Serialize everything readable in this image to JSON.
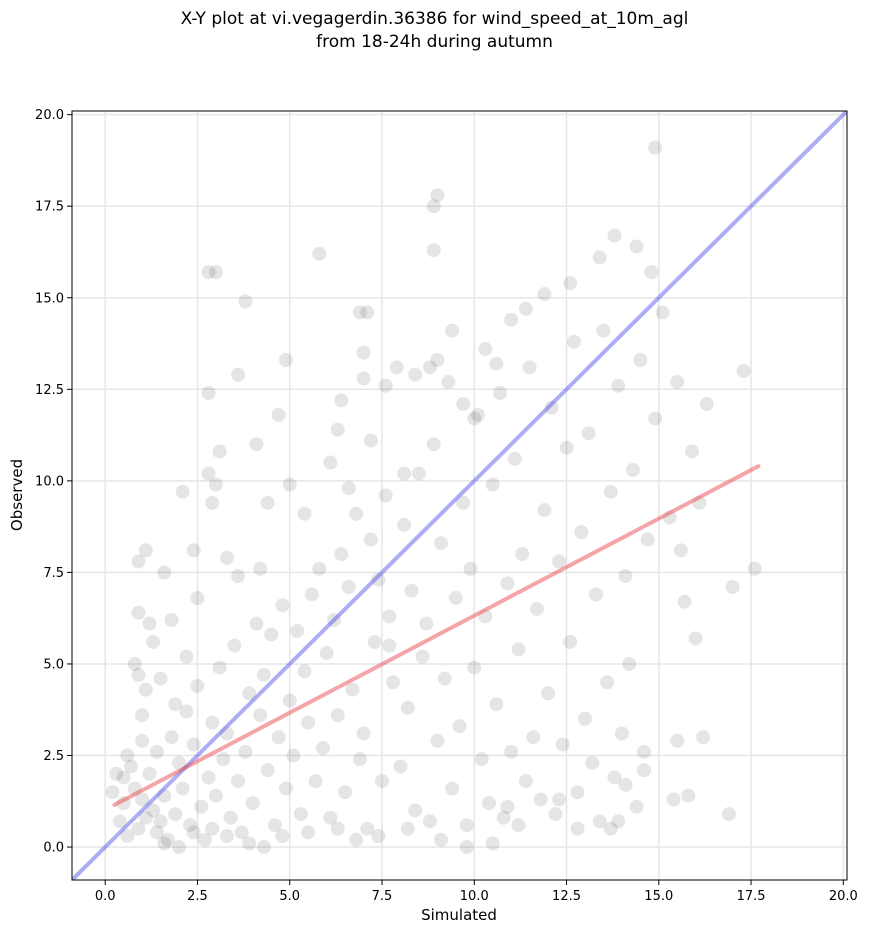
{
  "title": {
    "line1": "X-Y plot at vi.vegagerdin.36386 for wind_speed_at_10m_agl",
    "line2": "from 18-24h during autumn"
  },
  "chart_data": {
    "type": "scatter",
    "xlabel": "Simulated",
    "ylabel": "Observed",
    "xlim": [
      -0.9,
      20.1
    ],
    "ylim": [
      -0.9,
      20.1
    ],
    "x_ticks": [
      0.0,
      2.5,
      5.0,
      7.5,
      10.0,
      12.5,
      15.0,
      17.5,
      20.0
    ],
    "y_ticks": [
      0.0,
      2.5,
      5.0,
      7.5,
      10.0,
      12.5,
      15.0,
      17.5,
      20.0
    ],
    "x_tick_labels": [
      "0.0",
      "2.5",
      "5.0",
      "7.5",
      "10.0",
      "12.5",
      "15.0",
      "17.5",
      "20.0"
    ],
    "y_tick_labels": [
      "0.0",
      "2.5",
      "5.0",
      "7.5",
      "10.0",
      "12.5",
      "15.0",
      "17.5",
      "20.0"
    ],
    "grid": true,
    "point_color": "#000000",
    "points": [
      [
        0.9,
        0.5
      ],
      [
        1.1,
        0.8
      ],
      [
        1.3,
        1.0
      ],
      [
        1.0,
        1.3
      ],
      [
        1.5,
        0.7
      ],
      [
        0.8,
        1.6
      ],
      [
        1.2,
        2.0
      ],
      [
        1.6,
        1.4
      ],
      [
        1.9,
        0.9
      ],
      [
        2.1,
        1.6
      ],
      [
        2.3,
        0.6
      ],
      [
        2.0,
        2.3
      ],
      [
        2.6,
        1.1
      ],
      [
        2.8,
        1.9
      ],
      [
        1.4,
        2.6
      ],
      [
        0.7,
        2.2
      ],
      [
        1.8,
        3.0
      ],
      [
        2.4,
        2.8
      ],
      [
        3.0,
        1.4
      ],
      [
        3.2,
        2.4
      ],
      [
        2.9,
        3.4
      ],
      [
        3.4,
        0.8
      ],
      [
        3.6,
        1.8
      ],
      [
        3.3,
        3.1
      ],
      [
        3.8,
        2.6
      ],
      [
        4.0,
        1.2
      ],
      [
        4.2,
        3.6
      ],
      [
        3.9,
        4.2
      ],
      [
        4.4,
        2.1
      ],
      [
        4.6,
        0.6
      ],
      [
        4.7,
        3.0
      ],
      [
        4.9,
        1.6
      ],
      [
        5.1,
        2.5
      ],
      [
        5.0,
        4.0
      ],
      [
        5.3,
        0.9
      ],
      [
        5.5,
        3.4
      ],
      [
        5.7,
        1.8
      ],
      [
        5.4,
        4.8
      ],
      [
        5.9,
        2.7
      ],
      [
        6.1,
        0.8
      ],
      [
        6.3,
        3.6
      ],
      [
        6.0,
        5.3
      ],
      [
        6.5,
        1.5
      ],
      [
        6.7,
        4.3
      ],
      [
        6.9,
        2.4
      ],
      [
        7.1,
        0.5
      ],
      [
        7.3,
        5.6
      ],
      [
        7.0,
        3.1
      ],
      [
        7.5,
        1.8
      ],
      [
        7.7,
        6.3
      ],
      [
        0.5,
        1.9
      ],
      [
        0.6,
        0.3
      ],
      [
        1.0,
        2.9
      ],
      [
        1.7,
        0.2
      ],
      [
        2.2,
        3.7
      ],
      [
        2.5,
        4.4
      ],
      [
        2.7,
        0.2
      ],
      [
        3.1,
        4.9
      ],
      [
        3.5,
        5.5
      ],
      [
        3.7,
        0.4
      ],
      [
        4.1,
        6.1
      ],
      [
        4.3,
        4.7
      ],
      [
        4.5,
        5.8
      ],
      [
        4.8,
        6.6
      ],
      [
        5.2,
        5.9
      ],
      [
        5.6,
        6.9
      ],
      [
        5.8,
        7.6
      ],
      [
        6.2,
        6.2
      ],
      [
        6.4,
        8.0
      ],
      [
        6.6,
        7.1
      ],
      [
        6.8,
        9.1
      ],
      [
        7.2,
        8.4
      ],
      [
        7.4,
        7.3
      ],
      [
        7.6,
        9.6
      ],
      [
        7.8,
        4.5
      ],
      [
        8.0,
        2.2
      ],
      [
        8.2,
        3.8
      ],
      [
        8.4,
        1.0
      ],
      [
        8.6,
        5.2
      ],
      [
        8.8,
        0.7
      ],
      [
        9.0,
        2.9
      ],
      [
        9.2,
        4.6
      ],
      [
        9.4,
        1.6
      ],
      [
        9.6,
        3.3
      ],
      [
        9.8,
        0.6
      ],
      [
        10.0,
        4.9
      ],
      [
        10.2,
        2.4
      ],
      [
        10.4,
        1.2
      ],
      [
        10.6,
        3.9
      ],
      [
        10.8,
        0.8
      ],
      [
        11.0,
        2.6
      ],
      [
        11.2,
        5.4
      ],
      [
        11.4,
        1.8
      ],
      [
        11.6,
        3.0
      ],
      [
        11.8,
        1.3
      ],
      [
        12.0,
        4.2
      ],
      [
        12.2,
        0.9
      ],
      [
        12.4,
        2.8
      ],
      [
        12.6,
        5.6
      ],
      [
        12.8,
        1.5
      ],
      [
        13.0,
        3.5
      ],
      [
        13.2,
        2.3
      ],
      [
        13.4,
        0.7
      ],
      [
        13.6,
        4.5
      ],
      [
        13.8,
        1.9
      ],
      [
        14.0,
        3.1
      ],
      [
        14.2,
        5.0
      ],
      [
        14.4,
        1.1
      ],
      [
        14.6,
        2.6
      ],
      [
        15.4,
        1.3
      ],
      [
        8.1,
        8.8
      ],
      [
        8.3,
        7.0
      ],
      [
        8.5,
        10.2
      ],
      [
        8.7,
        6.1
      ],
      [
        8.9,
        11.0
      ],
      [
        9.1,
        8.3
      ],
      [
        9.3,
        12.7
      ],
      [
        9.5,
        6.8
      ],
      [
        9.7,
        9.4
      ],
      [
        9.9,
        7.6
      ],
      [
        10.1,
        11.8
      ],
      [
        10.3,
        6.3
      ],
      [
        10.5,
        9.9
      ],
      [
        10.7,
        12.4
      ],
      [
        10.9,
        7.2
      ],
      [
        11.1,
        10.6
      ],
      [
        11.3,
        8.0
      ],
      [
        11.5,
        13.1
      ],
      [
        11.7,
        6.5
      ],
      [
        11.9,
        9.2
      ],
      [
        12.1,
        12.0
      ],
      [
        12.3,
        7.8
      ],
      [
        12.5,
        10.9
      ],
      [
        12.7,
        13.8
      ],
      [
        12.9,
        8.6
      ],
      [
        13.1,
        11.3
      ],
      [
        13.3,
        6.9
      ],
      [
        13.5,
        14.1
      ],
      [
        13.7,
        9.7
      ],
      [
        13.9,
        12.6
      ],
      [
        14.1,
        7.4
      ],
      [
        14.3,
        10.3
      ],
      [
        14.5,
        13.3
      ],
      [
        14.7,
        8.4
      ],
      [
        14.9,
        11.7
      ],
      [
        15.1,
        14.6
      ],
      [
        15.3,
        9.0
      ],
      [
        15.5,
        12.7
      ],
      [
        15.7,
        6.7
      ],
      [
        15.9,
        10.8
      ],
      [
        16.1,
        9.4
      ],
      [
        16.3,
        12.1
      ],
      [
        16.0,
        5.7
      ],
      [
        15.6,
        8.1
      ],
      [
        14.8,
        15.7
      ],
      [
        14.4,
        16.4
      ],
      [
        13.8,
        16.7
      ],
      [
        13.4,
        16.1
      ],
      [
        12.6,
        15.4
      ],
      [
        11.9,
        15.1
      ],
      [
        3.0,
        15.7
      ],
      [
        2.8,
        15.7
      ],
      [
        3.8,
        14.9
      ],
      [
        5.8,
        16.2
      ],
      [
        8.9,
        17.5
      ],
      [
        9.0,
        17.8
      ],
      [
        8.9,
        16.3
      ],
      [
        14.9,
        19.1
      ],
      [
        17.6,
        7.6
      ],
      [
        17.3,
        13.0
      ],
      [
        17.0,
        7.1
      ],
      [
        16.9,
        0.9
      ],
      [
        15.8,
        1.4
      ],
      [
        16.2,
        3.0
      ],
      [
        15.5,
        2.9
      ],
      [
        7.7,
        5.5
      ],
      [
        6.9,
        14.6
      ],
      [
        7.1,
        14.6
      ],
      [
        7.0,
        13.5
      ],
      [
        4.9,
        13.3
      ],
      [
        2.8,
        12.4
      ],
      [
        3.6,
        12.9
      ],
      [
        4.1,
        11.0
      ],
      [
        4.7,
        11.8
      ],
      [
        3.1,
        10.8
      ],
      [
        2.8,
        10.2
      ],
      [
        3.0,
        9.9
      ],
      [
        2.1,
        9.7
      ],
      [
        2.9,
        9.4
      ],
      [
        2.4,
        8.1
      ],
      [
        1.1,
        8.1
      ],
      [
        0.9,
        7.8
      ],
      [
        1.6,
        7.5
      ],
      [
        0.9,
        6.4
      ],
      [
        1.2,
        6.1
      ],
      [
        0.8,
        5.0
      ],
      [
        0.9,
        4.7
      ],
      [
        1.1,
        4.3
      ],
      [
        1.5,
        4.6
      ],
      [
        1.3,
        5.6
      ],
      [
        1.0,
        3.6
      ],
      [
        1.9,
        3.9
      ],
      [
        2.2,
        5.2
      ],
      [
        2.5,
        6.8
      ],
      [
        1.8,
        6.2
      ],
      [
        3.3,
        7.9
      ],
      [
        3.6,
        7.4
      ],
      [
        4.2,
        7.6
      ],
      [
        4.4,
        9.4
      ],
      [
        5.0,
        9.9
      ],
      [
        5.4,
        9.1
      ],
      [
        6.1,
        10.5
      ],
      [
        6.3,
        11.4
      ],
      [
        6.4,
        12.2
      ],
      [
        6.6,
        9.8
      ],
      [
        7.0,
        12.8
      ],
      [
        7.2,
        11.1
      ],
      [
        7.6,
        12.6
      ],
      [
        7.9,
        13.1
      ],
      [
        8.1,
        10.2
      ],
      [
        8.4,
        12.9
      ],
      [
        8.8,
        13.1
      ],
      [
        9.0,
        13.3
      ],
      [
        9.4,
        14.1
      ],
      [
        9.7,
        12.1
      ],
      [
        10.0,
        11.7
      ],
      [
        10.3,
        13.6
      ],
      [
        10.6,
        13.2
      ],
      [
        11.0,
        14.4
      ],
      [
        11.4,
        14.7
      ],
      [
        0.4,
        0.7
      ],
      [
        0.5,
        1.2
      ],
      [
        0.3,
        2.0
      ],
      [
        0.6,
        2.5
      ],
      [
        0.2,
        1.5
      ],
      [
        1.4,
        0.4
      ],
      [
        1.6,
        0.1
      ],
      [
        2.0,
        0.0
      ],
      [
        2.4,
        0.4
      ],
      [
        2.9,
        0.5
      ],
      [
        3.3,
        0.3
      ],
      [
        3.9,
        0.1
      ],
      [
        4.3,
        0.0
      ],
      [
        4.8,
        0.3
      ],
      [
        5.5,
        0.4
      ],
      [
        6.3,
        0.5
      ],
      [
        6.8,
        0.2
      ],
      [
        7.4,
        0.3
      ],
      [
        8.2,
        0.5
      ],
      [
        9.1,
        0.2
      ],
      [
        9.8,
        0.0
      ],
      [
        10.5,
        0.1
      ],
      [
        11.2,
        0.6
      ],
      [
        12.8,
        0.5
      ],
      [
        13.7,
        0.5
      ],
      [
        13.9,
        0.7
      ],
      [
        14.6,
        2.1
      ],
      [
        14.1,
        1.7
      ],
      [
        12.3,
        1.3
      ],
      [
        10.9,
        1.1
      ]
    ],
    "regression_line": {
      "color": "#e8383d",
      "x": [
        0.25,
        17.7
      ],
      "y": [
        1.15,
        10.4
      ]
    },
    "identity_line": {
      "color": "#4a4aeb",
      "x": [
        -0.9,
        20.1
      ],
      "y": [
        -0.9,
        20.1
      ]
    }
  }
}
